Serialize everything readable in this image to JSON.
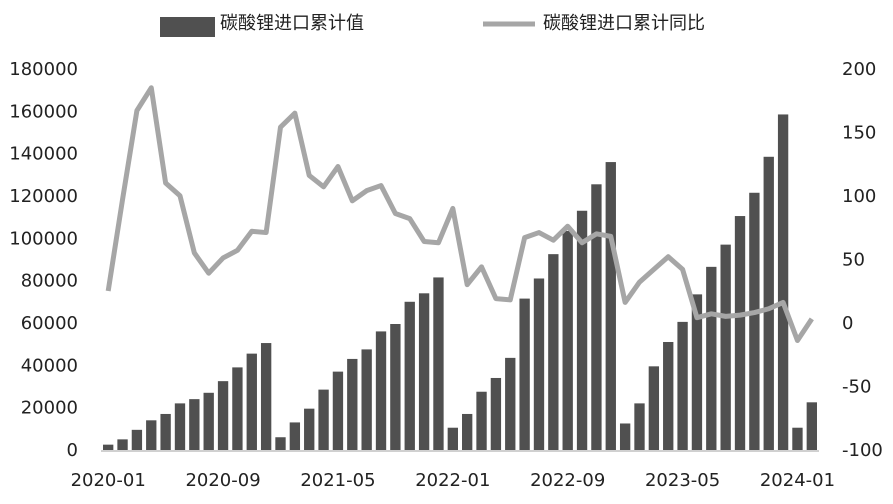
{
  "chart_data": {
    "type": "bar-line",
    "categories": [
      "2020-01",
      null,
      null,
      null,
      null,
      null,
      null,
      null,
      "2020-09",
      null,
      null,
      null,
      null,
      null,
      null,
      null,
      "2021-05",
      null,
      null,
      null,
      null,
      null,
      null,
      null,
      "2022-01",
      null,
      null,
      null,
      null,
      null,
      null,
      null,
      "2022-09",
      null,
      null,
      null,
      null,
      null,
      null,
      null,
      "2023-05",
      null,
      null,
      null,
      null,
      null,
      null,
      null,
      "2024-01",
      null
    ],
    "series": [
      {
        "name": "碳酸锂进口累计值",
        "color": "#505050",
        "type": "bar",
        "values": [
          3000,
          5500,
          10000,
          14500,
          17500,
          22500,
          24500,
          27500,
          33000,
          39500,
          46000,
          51000,
          6500,
          13500,
          20000,
          29000,
          37500,
          43500,
          48000,
          56500,
          60000,
          70500,
          74500,
          82000,
          11000,
          17500,
          28000,
          34500,
          44000,
          72000,
          81500,
          93000,
          104000,
          113500,
          126000,
          136500,
          13000,
          22500,
          40000,
          51500,
          61000,
          74000,
          87000,
          97500,
          111000,
          122000,
          139000,
          159000,
          11000,
          23000
        ]
      },
      {
        "name": "碳酸锂进口累计同比",
        "color": "#a6a6a6",
        "type": "line",
        "axis": "y2",
        "values": [
          26,
          98,
          168,
          186,
          111,
          101,
          56,
          40,
          52,
          58,
          73,
          72,
          155,
          166,
          117,
          108,
          124,
          97,
          105,
          109,
          87,
          83,
          65,
          64,
          91,
          31,
          45,
          20,
          19,
          68,
          72,
          66,
          77,
          64,
          71,
          69,
          17,
          33,
          43,
          53,
          43,
          5,
          8,
          6,
          7,
          9,
          12,
          17,
          -13,
          4
        ]
      }
    ],
    "ylim": [
      0,
      180000
    ],
    "yticks": [
      0,
      20000,
      40000,
      60000,
      80000,
      100000,
      120000,
      140000,
      160000,
      180000
    ],
    "y2lim": [
      -100,
      200
    ],
    "y2ticks": [
      -100,
      -50,
      0,
      50,
      100,
      150,
      200
    ],
    "legend": "top"
  }
}
